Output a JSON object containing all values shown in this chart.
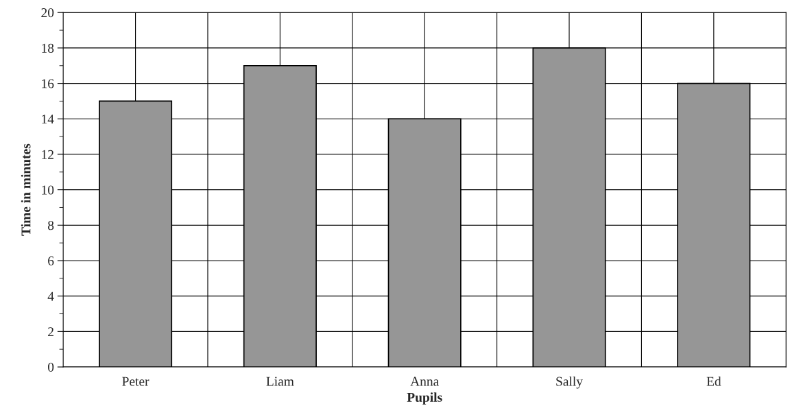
{
  "chart_data": {
    "type": "bar",
    "xlabel": "Pupils",
    "ylabel": "Time in minutes",
    "categories": [
      "Peter",
      "Liam",
      "Anna",
      "Sally",
      "Ed"
    ],
    "values": [
      15,
      17,
      14,
      18,
      16
    ],
    "color": "#969696",
    "ylim": [
      0,
      20
    ],
    "yticks": [
      0,
      2,
      4,
      6,
      8,
      10,
      12,
      14,
      16,
      18,
      20
    ],
    "grid": true
  }
}
